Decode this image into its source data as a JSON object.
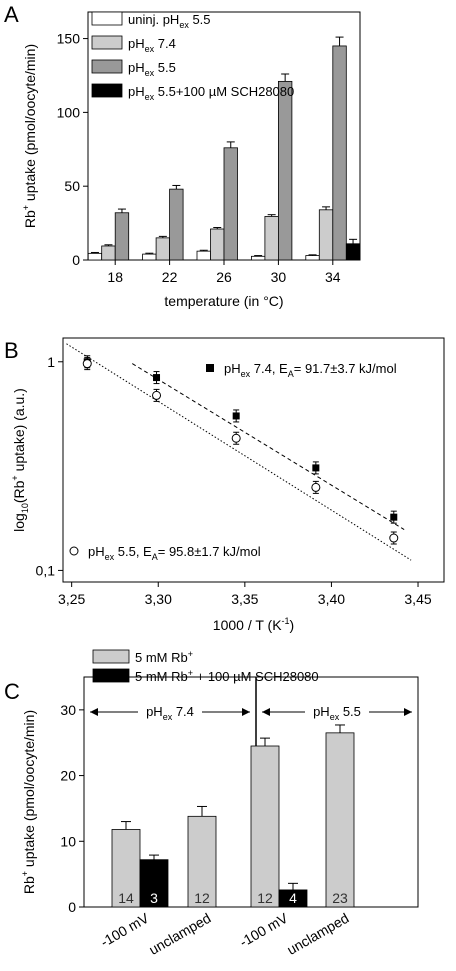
{
  "chart_data": [
    {
      "panel": "A",
      "type": "bar",
      "xlabel": "temperature (in °C)",
      "ylabel": "Rb+ uptake (pmol/oocyte/min)",
      "ylabel_parts": {
        "main": "Rb",
        "sup": "+",
        "rest": " uptake (pmol/oocyte/min)"
      },
      "ylim": [
        0,
        168
      ],
      "yticks": [
        0,
        50,
        100,
        150
      ],
      "categories": [
        "18",
        "22",
        "26",
        "30",
        "34"
      ],
      "legend_position": "top-left",
      "series": [
        {
          "name": "uninj. pHex 5.5",
          "label_parts": {
            "pre": "uninj. pH",
            "sub": "ex",
            "post": " 5.5"
          },
          "color": "#ffffff",
          "values": [
            4.5,
            4,
            6,
            2.5,
            3
          ],
          "errors": [
            0.6,
            0.6,
            0.6,
            0.5,
            0.5
          ]
        },
        {
          "name": "pHex 7.4",
          "label_parts": {
            "pre": "pH",
            "sub": "ex",
            "post": " 7.4"
          },
          "color": "#cccccc",
          "values": [
            9.5,
            15,
            21,
            29.5,
            34
          ],
          "errors": [
            0.8,
            1,
            1,
            1.2,
            2
          ]
        },
        {
          "name": "pHex 5.5",
          "label_parts": {
            "pre": "pH",
            "sub": "ex",
            "post": " 5.5"
          },
          "color": "#999999",
          "values": [
            32,
            48,
            76,
            121,
            145
          ],
          "errors": [
            2.5,
            2.5,
            4,
            5,
            6
          ]
        },
        {
          "name": "pHex 5.5+100 µM SCH28080",
          "label_parts": {
            "pre": "pH",
            "sub": "ex",
            "post": " 5.5+100 µM SCH28080"
          },
          "color": "#000000",
          "values": [
            null,
            null,
            null,
            null,
            11
          ],
          "errors": [
            null,
            null,
            null,
            null,
            3
          ]
        }
      ]
    },
    {
      "panel": "B",
      "type": "scatter",
      "xlabel": "1000 / T (K-1)",
      "xlabel_parts": {
        "main": "1000 / T (K",
        "sup": "-1",
        "rest": ")"
      },
      "ylabel": "log10(Rb+ uptake) (a.u.)",
      "ylabel_parts": {
        "pre": "log",
        "sub": "10",
        "mid": "(Rb",
        "sup": "+",
        "post": " uptake) (a.u.)"
      },
      "xlim": [
        3.245,
        3.465
      ],
      "ylim": [
        0.088,
        1.3
      ],
      "yscale": "log",
      "xticks": [
        "3,25",
        "3,30",
        "3,35",
        "3,40",
        "3,45"
      ],
      "xtick_values": [
        3.25,
        3.3,
        3.35,
        3.4,
        3.45
      ],
      "yticks": [
        "1",
        "0,1"
      ],
      "ytick_values": [
        1,
        0.1
      ],
      "series": [
        {
          "name": "pHex 7.4, EA= 91.7±3.7 kJ/mol",
          "label_parts": {
            "a": "pH",
            "b": "ex",
            "c": " 7.4, E",
            "d": "A",
            "e": "= 91.7±3.7 kJ/mol"
          },
          "marker": "filled-square",
          "x": [
            3.259,
            3.299,
            3.345,
            3.391,
            3.436
          ],
          "y": [
            1.0,
            0.84,
            0.55,
            0.31,
            0.18
          ],
          "fit": {
            "x": [
              3.285,
              3.442
            ],
            "y": [
              0.98,
              0.157
            ]
          }
        },
        {
          "name": "pHex 5.5, EA= 95.8±1.7 kJ/mol",
          "label_parts": {
            "a": "pH",
            "b": "ex",
            "c": " 5.5, E",
            "d": "A",
            "e": "= 95.8±1.7 kJ/mol"
          },
          "marker": "open-circle",
          "x": [
            3.259,
            3.299,
            3.345,
            3.391,
            3.436
          ],
          "y": [
            0.98,
            0.69,
            0.43,
            0.25,
            0.143
          ],
          "fit": {
            "x": [
              3.247,
              3.446
            ],
            "y": [
              1.22,
              0.112
            ]
          }
        }
      ]
    },
    {
      "panel": "C",
      "type": "bar",
      "ylabel": "Rb+ uptake (pmol/oocyte/min)",
      "ylabel_parts": {
        "main": "Rb",
        "sup": "+",
        "rest": " uptake (pmol/oocyte/min)"
      },
      "ylim": [
        0,
        35
      ],
      "yticks": [
        0,
        10,
        20,
        30
      ],
      "categories": [
        "-100 mV",
        "unclamped",
        "-100 mV",
        "unclamped"
      ],
      "groups": [
        {
          "label": "pHex 7.4",
          "label_parts": {
            "pre": "pH",
            "sub": "ex",
            "post": " 7.4"
          }
        },
        {
          "label": "pHex 5.5",
          "label_parts": {
            "pre": "pH",
            "sub": "ex",
            "post": " 5.5"
          }
        }
      ],
      "series": [
        {
          "name": "5 mM Rb+",
          "label_parts": {
            "pre": "5 mM Rb",
            "sup": "+",
            "post": ""
          },
          "color": "#cccccc",
          "values": [
            11.8,
            13.8,
            24.5,
            26.5
          ],
          "errors": [
            1.2,
            1.5,
            1.2,
            1.2
          ],
          "n": [
            "14",
            "12",
            "12",
            "23"
          ]
        },
        {
          "name": "5 mM Rb+ + 100 µM SCH28080",
          "label_parts": {
            "pre": "5 mM Rb",
            "sup": "+",
            "post": " + 100 µM SCH28080"
          },
          "color": "#000000",
          "values": [
            7.2,
            null,
            2.6,
            null
          ],
          "errors": [
            0.7,
            null,
            1.0,
            null
          ],
          "n": [
            "3",
            null,
            "4",
            null
          ]
        }
      ]
    }
  ],
  "panels": {
    "a": "A",
    "b": "B",
    "c": "C"
  }
}
